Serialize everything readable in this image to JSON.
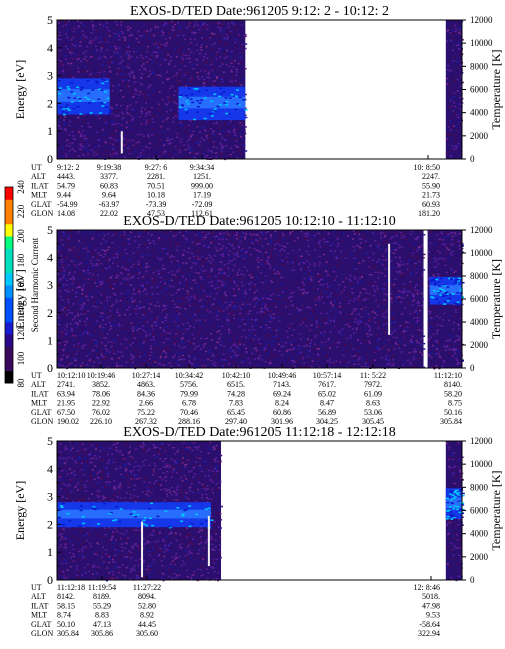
{
  "chart_data": [
    {
      "type": "heatmap",
      "title": "EXOS-D/TED   Date:961205   9:12: 2 - 10:12: 2",
      "ylabel": "Energy [eV]",
      "ylabel_right": "Temperature [K]",
      "ylim": [
        0,
        5
      ],
      "y_ticks": [
        "0",
        "1",
        "2",
        "3",
        "4",
        "5"
      ],
      "y2lim": [
        0,
        12000
      ],
      "y2_ticks": [
        "0",
        "2000",
        "4000",
        "6000",
        "8000",
        "10000",
        "12000"
      ],
      "data_coverage": [
        [
          0.0,
          0.465
        ],
        [
          0.96,
          1.0
        ]
      ],
      "band": [
        {
          "x0": 0.0,
          "x1": 0.13,
          "y0": 1.6,
          "y1": 2.9
        },
        {
          "x0": 0.3,
          "x1": 0.465,
          "y0": 1.4,
          "y1": 2.6
        }
      ],
      "spikes": [
        {
          "x": 0.16,
          "y0": 0.2,
          "y1": 1.0
        }
      ],
      "ephemeris": {
        "labels": [
          "UT",
          "ALT",
          "ILAT",
          "MLT",
          "GLAT",
          "GLON"
        ],
        "columns": [
          {
            "values": [
              "9:12: 2",
              "4443.",
              "54.79",
              "9.44",
              "-54.99",
              "14.08"
            ]
          },
          {
            "values": [
              "9:19:38",
              "3377.",
              "60.83",
              "9.64",
              "-63.97",
              "22.02"
            ]
          },
          {
            "values": [
              "9:27: 6",
              "2281.",
              "70.51",
              "10.18",
              "-73.39",
              "47.53"
            ]
          },
          {
            "values": [
              "9:34:34",
              "1251.",
              "999.00",
              "17.19",
              "-72.09",
              "112.61"
            ]
          },
          {
            "values": [
              "10: 8:50",
              "2247.",
              "55.90",
              "21.73",
              "60.93",
              "181.20"
            ]
          }
        ]
      }
    },
    {
      "type": "heatmap",
      "title": "EXOS-D/TED   Date:961205   10:12:10 - 11:12:10",
      "ylabel": "Energy [eV]",
      "ylabel_right": "Temperature [K]",
      "ylim": [
        0,
        5
      ],
      "y_ticks": [
        "0",
        "1",
        "2",
        "3",
        "4",
        "5"
      ],
      "y2lim": [
        0,
        12000
      ],
      "y2_ticks": [
        "0",
        "2000",
        "4000",
        "6000",
        "8000",
        "10000",
        "12000"
      ],
      "data_coverage": [
        [
          0.0,
          0.905
        ],
        [
          0.915,
          1.0
        ]
      ],
      "band": [
        {
          "x0": 0.92,
          "x1": 1.0,
          "y0": 2.3,
          "y1": 3.3
        }
      ],
      "spikes": [
        {
          "x": 0.82,
          "y0": 1.2,
          "y1": 4.5
        }
      ],
      "ephemeris": {
        "labels": [
          "UT",
          "ALT",
          "ILAT",
          "MLT",
          "GLAT",
          "GLON"
        ],
        "columns": [
          {
            "values": [
              "10:12:10",
              "2741.",
              "63.94",
              "21.95",
              "67.50",
              "190.02"
            ]
          },
          {
            "values": [
              "10:19:46",
              "3852.",
              "78.06",
              "22.92",
              "76.02",
              "226.10"
            ]
          },
          {
            "values": [
              "10:27:14",
              "4863.",
              "84.36",
              "2.66",
              "75.22",
              "267.32"
            ]
          },
          {
            "values": [
              "10:34:42",
              "5756.",
              "79.99",
              "6.78",
              "70.46",
              "288.16"
            ]
          },
          {
            "values": [
              "10:42:10",
              "6515.",
              "74.28",
              "7.83",
              "65.45",
              "297.40"
            ]
          },
          {
            "values": [
              "10:49:46",
              "7143.",
              "69.24",
              "8.24",
              "60.86",
              "301.96"
            ]
          },
          {
            "values": [
              "10:57:14",
              "7617.",
              "65.02",
              "8.47",
              "56.89",
              "304.25"
            ]
          },
          {
            "values": [
              "11: 5:22",
              "7972.",
              "61.09",
              "8.63",
              "53.06",
              "305.45"
            ]
          },
          {
            "values": [
              "11:12:10",
              "8140.",
              "58.20",
              "8.75",
              "50.16",
              "305.84"
            ]
          }
        ]
      }
    },
    {
      "type": "heatmap",
      "title": "EXOS-D/TED   Date:961205   11:12:18 - 12:12:18",
      "ylabel": "Energy [eV]",
      "ylabel_right": "Temperature [K]",
      "ylim": [
        0,
        5
      ],
      "y_ticks": [
        "0",
        "1",
        "2",
        "3",
        "4",
        "5"
      ],
      "y2lim": [
        0,
        12000
      ],
      "y2_ticks": [
        "0",
        "2000",
        "4000",
        "6000",
        "8000",
        "10000",
        "12000"
      ],
      "data_coverage": [
        [
          0.0,
          0.405
        ],
        [
          0.96,
          1.0
        ]
      ],
      "band": [
        {
          "x0": 0.0,
          "x1": 0.38,
          "y0": 1.9,
          "y1": 2.8
        },
        {
          "x0": 0.96,
          "x1": 1.0,
          "y0": 2.2,
          "y1": 3.3
        }
      ],
      "spikes": [
        {
          "x": 0.21,
          "y0": 0.1,
          "y1": 2.1
        },
        {
          "x": 0.375,
          "y0": 0.5,
          "y1": 2.3
        }
      ],
      "ephemeris": {
        "labels": [
          "UT",
          "ALT",
          "ILAT",
          "MLT",
          "GLAT",
          "GLON"
        ],
        "columns": [
          {
            "values": [
              "11:12:18",
              "8142.",
              "58.15",
              "8.74",
              "50.10",
              "305.84"
            ]
          },
          {
            "values": [
              "11:19:54",
              "8189.",
              "55.29",
              "8.83",
              "47.13",
              "305.86"
            ]
          },
          {
            "values": [
              "11:27:22",
              "8094.",
              "52.80",
              "8.92",
              "44.45",
              "305.60"
            ]
          },
          {
            "values": [
              "12: 8:46",
              "5018.",
              "47.98",
              "9.53",
              "-58.64",
              "322.94"
            ]
          }
        ]
      }
    }
  ],
  "colorbar": {
    "label": "Second Harmonic Current",
    "range": [
      80,
      240
    ],
    "ticks": [
      "80",
      "100",
      "120",
      "140",
      "160",
      "180",
      "200",
      "220",
      "240"
    ],
    "colors": [
      "#000000",
      "#3a0a5c",
      "#2a0a8a",
      "#1a1ad0",
      "#0050ff",
      "#0090ff",
      "#00c8ff",
      "#00e0c0",
      "#00ff80",
      "#ffff00",
      "#ff8000",
      "#ff0000"
    ]
  }
}
